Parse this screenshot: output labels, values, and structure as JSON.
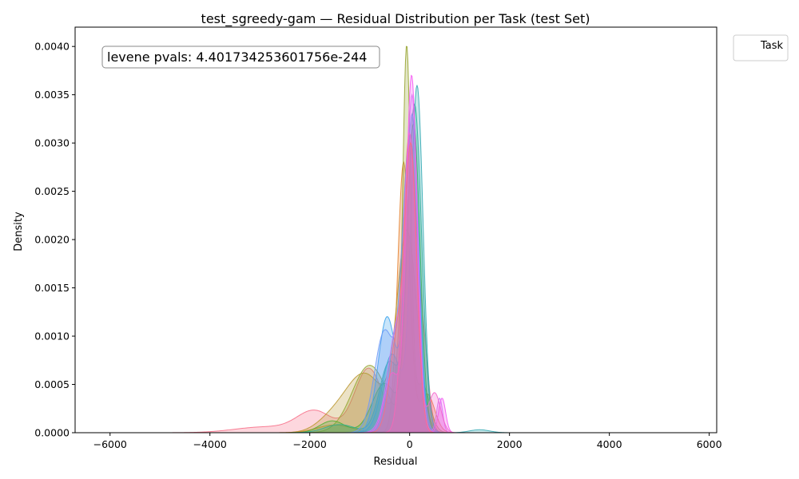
{
  "chart_data": {
    "type": "area",
    "title": "test_sgreedy-gam — Residual Distribution per Task (test Set)",
    "xlabel": "Residual",
    "ylabel": "Density",
    "xlim": [
      -6700,
      6150
    ],
    "ylim": [
      0,
      0.0042
    ],
    "xticks": [
      -6000,
      -4000,
      -2000,
      0,
      2000,
      4000,
      6000
    ],
    "yticks": [
      "0.0000",
      "0.0005",
      "0.0010",
      "0.0015",
      "0.0020",
      "0.0025",
      "0.0030",
      "0.0035",
      "0.0040"
    ],
    "grid": false,
    "legend": {
      "title": "Task",
      "placement": "outside-top-right",
      "entries": []
    },
    "annotation": "levene pvals: 4.401734253601756e-244",
    "x_extent": [
      -6000,
      5600
    ],
    "series": [
      {
        "color": "#f77189",
        "peak": 0.0031,
        "components": [
          [
            -2900,
            600,
            6e-05
          ],
          [
            -1900,
            350,
            0.00022
          ],
          [
            -820,
            280,
            0.00067
          ],
          [
            0,
            150,
            0.0031
          ],
          [
            300,
            100,
            0.0006
          ]
        ]
      },
      {
        "color": "#e68332",
        "peak": 0.0028,
        "components": [
          [
            -120,
            120,
            0.0028
          ],
          [
            -1500,
            350,
            8e-05
          ],
          [
            350,
            150,
            0.0004
          ]
        ]
      },
      {
        "color": "#bb9832",
        "peak": 0.0021,
        "components": [
          [
            -900,
            400,
            0.0006
          ],
          [
            -50,
            200,
            0.002
          ],
          [
            -1600,
            300,
            0.0001
          ]
        ]
      },
      {
        "color": "#97a431",
        "peak": 0.004,
        "components": [
          [
            -60,
            80,
            0.0039
          ],
          [
            -800,
            350,
            0.0007
          ],
          [
            250,
            150,
            0.0005
          ]
        ]
      },
      {
        "color": "#50b131",
        "peak": 0.0032,
        "components": [
          [
            80,
            130,
            0.0031
          ],
          [
            -1550,
            250,
            0.00012
          ],
          [
            -500,
            250,
            0.0005
          ]
        ]
      },
      {
        "color": "#34ae91",
        "peak": 0.0034,
        "components": [
          [
            100,
            140,
            0.0032
          ],
          [
            -400,
            200,
            0.0007
          ],
          [
            -1400,
            300,
            8e-05
          ]
        ]
      },
      {
        "color": "#37abb5",
        "peak": 0.0036,
        "components": [
          [
            150,
            120,
            0.0035
          ],
          [
            -350,
            200,
            0.0008
          ],
          [
            1400,
            200,
            3e-05
          ]
        ]
      },
      {
        "color": "#3ba3ec",
        "peak": 0.0033,
        "components": [
          [
            50,
            130,
            0.003
          ],
          [
            -450,
            180,
            0.0011
          ]
        ]
      },
      {
        "color": "#6e9af8",
        "peak": 0.003,
        "components": [
          [
            0,
            150,
            0.0028
          ],
          [
            -500,
            200,
            0.001
          ]
        ]
      },
      {
        "color": "#cc7af4",
        "peak": 0.0035,
        "components": [
          [
            -220,
            200,
            0.0013
          ],
          [
            60,
            110,
            0.0034
          ],
          [
            600,
            60,
            0.0004
          ]
        ]
      },
      {
        "color": "#f45cf2",
        "peak": 0.0037,
        "components": [
          [
            40,
            110,
            0.0036
          ],
          [
            -350,
            150,
            0.0006
          ],
          [
            650,
            70,
            0.00035
          ]
        ]
      },
      {
        "color": "#f565cc",
        "peak": 0.0031,
        "components": [
          [
            0,
            130,
            0.003
          ],
          [
            500,
            120,
            0.0004
          ]
        ]
      },
      {
        "color": "#f7707f",
        "peak": 0.003,
        "components": [
          [
            30,
            120,
            0.0029
          ],
          [
            -250,
            150,
            0.001
          ]
        ]
      }
    ]
  }
}
